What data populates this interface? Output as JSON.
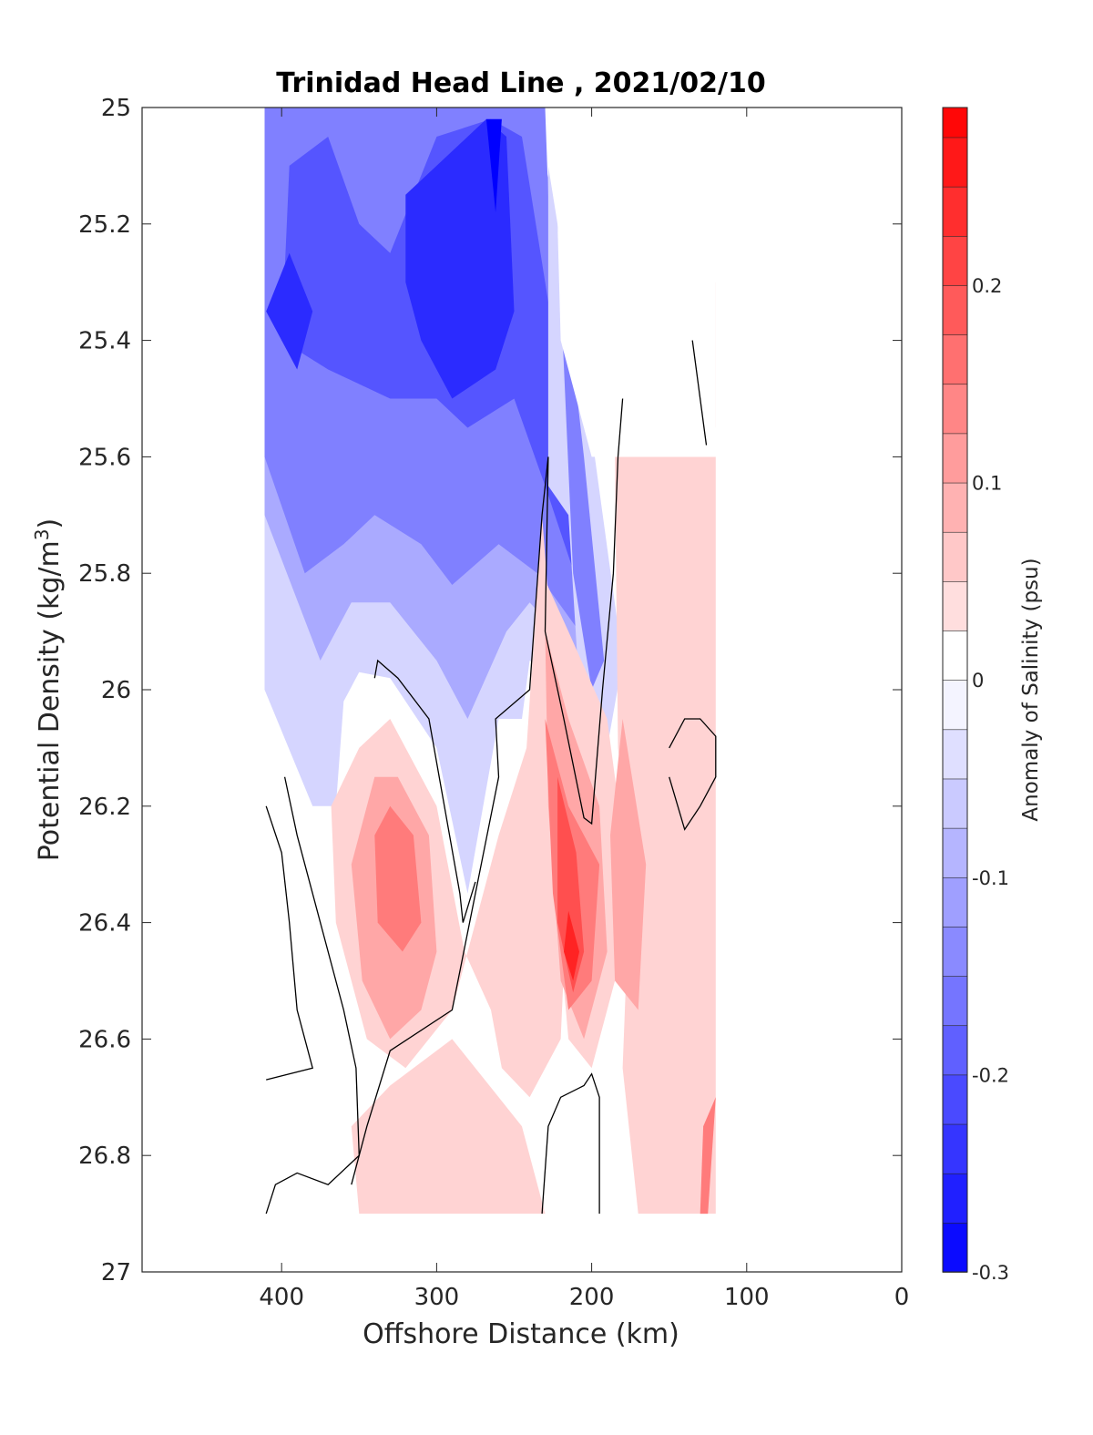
{
  "chart_data": {
    "type": "contour",
    "title": "Trinidad Head Line , 2021/02/10",
    "xlabel": "Offshore Distance (km)",
    "ylabel_main": "Potential Density (kg/m",
    "ylabel_sup": "3",
    "ylabel_close": ")",
    "colorbar_label": "Anomaly of Salinity (psu)",
    "xlim": [
      490,
      0
    ],
    "x_reversed": true,
    "ylim": [
      25,
      27
    ],
    "y_reversed": true,
    "x_ticks": [
      "400",
      "300",
      "200",
      "100",
      "0"
    ],
    "x_tick_values": [
      400,
      300,
      200,
      100,
      0
    ],
    "y_ticks": [
      "25",
      "25.2",
      "25.4",
      "25.6",
      "25.8",
      "26",
      "26.2",
      "26.4",
      "26.6",
      "26.8",
      "27"
    ],
    "y_tick_values": [
      25,
      25.2,
      25.4,
      25.6,
      25.8,
      26,
      26.2,
      26.4,
      26.6,
      26.8,
      27
    ],
    "colorbar_ticks": [
      "0.2",
      "0.1",
      "0",
      "-0.1",
      "-0.2",
      "-0.3"
    ],
    "colorbar_tick_values": [
      0.2,
      0.1,
      0,
      -0.1,
      -0.2,
      -0.3
    ],
    "colorbar_range": [
      -0.3,
      0.29
    ],
    "colorbar_step": 0.025,
    "colormap": {
      "negative": "#0000ff",
      "zero": "#ffffff",
      "positive": "#ff0000"
    },
    "regions": [
      {
        "name": "negative-upper-offshore",
        "level": -0.05,
        "points": [
          [
            411,
            25
          ],
          [
            230,
            25
          ],
          [
            230,
            25.1
          ],
          [
            220,
            25.2
          ],
          [
            220,
            25.4
          ],
          [
            205,
            25.6
          ],
          [
            205,
            26.1
          ],
          [
            212,
            26.0
          ],
          [
            240,
            25.95
          ],
          [
            245,
            26.05
          ],
          [
            260,
            26.05
          ],
          [
            280,
            26.35
          ],
          [
            300,
            26.1
          ],
          [
            330,
            25.98
          ],
          [
            350,
            25.97
          ],
          [
            360,
            26.02
          ],
          [
            365,
            26.2
          ],
          [
            380,
            26.2
          ],
          [
            411,
            26.0
          ]
        ]
      },
      {
        "name": "negative-upper-offshore",
        "level": -0.1,
        "points": [
          [
            411,
            25
          ],
          [
            230,
            25
          ],
          [
            230,
            25.1
          ],
          [
            220,
            25.2
          ],
          [
            218,
            25.45
          ],
          [
            205,
            25.6
          ],
          [
            205,
            25.95
          ],
          [
            240,
            25.85
          ],
          [
            255,
            25.9
          ],
          [
            280,
            26.05
          ],
          [
            300,
            25.95
          ],
          [
            330,
            25.85
          ],
          [
            355,
            25.85
          ],
          [
            375,
            25.95
          ],
          [
            411,
            25.7
          ]
        ]
      },
      {
        "name": "negative-upper-offshore",
        "level": -0.15,
        "points": [
          [
            411,
            25
          ],
          [
            230,
            25
          ],
          [
            228,
            25.15
          ],
          [
            222,
            25.4
          ],
          [
            208,
            25.6
          ],
          [
            208,
            25.9
          ],
          [
            235,
            25.8
          ],
          [
            260,
            25.75
          ],
          [
            290,
            25.82
          ],
          [
            310,
            25.75
          ],
          [
            340,
            25.7
          ],
          [
            360,
            25.75
          ],
          [
            385,
            25.8
          ],
          [
            411,
            25.6
          ]
        ]
      },
      {
        "name": "negative-upper-offshore",
        "level": -0.2,
        "points": [
          [
            395,
            25.1
          ],
          [
            370,
            25.05
          ],
          [
            350,
            25.2
          ],
          [
            330,
            25.25
          ],
          [
            300,
            25.05
          ],
          [
            265,
            25.02
          ],
          [
            245,
            25.05
          ],
          [
            230,
            25.3
          ],
          [
            212,
            25.6
          ],
          [
            205,
            25.85
          ],
          [
            230,
            25.65
          ],
          [
            250,
            25.5
          ],
          [
            280,
            25.55
          ],
          [
            300,
            25.5
          ],
          [
            330,
            25.5
          ],
          [
            370,
            25.45
          ],
          [
            400,
            25.4
          ]
        ]
      },
      {
        "name": "negative-upper-offshore",
        "level": -0.25,
        "points": [
          [
            395,
            25.25
          ],
          [
            380,
            25.35
          ],
          [
            390,
            25.45
          ],
          [
            410,
            25.35
          ]
        ]
      },
      {
        "name": "negative-upper-offshore",
        "level": -0.25,
        "points": [
          [
            320,
            25.15
          ],
          [
            300,
            25.1
          ],
          [
            268,
            25.02
          ],
          [
            255,
            25.05
          ],
          [
            250,
            25.35
          ],
          [
            262,
            25.45
          ],
          [
            290,
            25.5
          ],
          [
            310,
            25.4
          ],
          [
            320,
            25.3
          ]
        ]
      },
      {
        "name": "negative-upper-offshore",
        "level": -0.3,
        "points": [
          [
            268,
            25.02
          ],
          [
            258,
            25.02
          ],
          [
            262,
            25.18
          ]
        ]
      },
      {
        "name": "negative-wedge",
        "level": -0.05,
        "points": [
          [
            228,
            25.0
          ],
          [
            198,
            25.6
          ],
          [
            180,
            25.95
          ],
          [
            190,
            26.1
          ],
          [
            200,
            26.15
          ],
          [
            208,
            26.0
          ],
          [
            215,
            25.7
          ],
          [
            228,
            25.65
          ]
        ]
      },
      {
        "name": "negative-wedge",
        "level": -0.15,
        "points": [
          [
            222,
            25.2
          ],
          [
            205,
            25.6
          ],
          [
            192,
            25.95
          ],
          [
            200,
            26.0
          ],
          [
            212,
            25.8
          ]
        ]
      },
      {
        "name": "positive-inshore-core",
        "level": 0.05,
        "points": [
          [
            350,
            26.1
          ],
          [
            330,
            26.05
          ],
          [
            300,
            26.2
          ],
          [
            282,
            26.45
          ],
          [
            265,
            26.55
          ],
          [
            258,
            26.65
          ],
          [
            240,
            26.7
          ],
          [
            220,
            26.6
          ],
          [
            215,
            26.3
          ],
          [
            222,
            26.05
          ],
          [
            232,
            25.7
          ],
          [
            242,
            26.1
          ],
          [
            260,
            26.25
          ],
          [
            290,
            26.55
          ],
          [
            320,
            26.65
          ],
          [
            345,
            26.6
          ],
          [
            365,
            26.4
          ],
          [
            368,
            26.2
          ]
        ]
      },
      {
        "name": "positive-inshore-core",
        "level": 0.1,
        "points": [
          [
            340,
            26.15
          ],
          [
            325,
            26.15
          ],
          [
            305,
            26.25
          ],
          [
            300,
            26.45
          ],
          [
            310,
            26.55
          ],
          [
            330,
            26.6
          ],
          [
            348,
            26.5
          ],
          [
            355,
            26.3
          ]
        ]
      },
      {
        "name": "positive-inshore-core",
        "level": 0.15,
        "points": [
          [
            330,
            26.2
          ],
          [
            315,
            26.25
          ],
          [
            310,
            26.4
          ],
          [
            322,
            26.45
          ],
          [
            338,
            26.4
          ],
          [
            340,
            26.25
          ]
        ]
      },
      {
        "name": "positive-inshore-core",
        "level": 0.05,
        "points": [
          [
            232,
            25.8
          ],
          [
            215,
            25.9
          ],
          [
            190,
            26.05
          ],
          [
            180,
            26.25
          ],
          [
            185,
            26.5
          ],
          [
            200,
            26.65
          ],
          [
            215,
            26.6
          ],
          [
            225,
            26.3
          ]
        ]
      },
      {
        "name": "positive-inshore-core",
        "level": 0.1,
        "points": [
          [
            230,
            25.9
          ],
          [
            215,
            26.05
          ],
          [
            195,
            26.2
          ],
          [
            190,
            26.45
          ],
          [
            205,
            26.6
          ],
          [
            220,
            26.5
          ],
          [
            228,
            26.2
          ]
        ]
      },
      {
        "name": "positive-inshore-core",
        "level": 0.15,
        "points": [
          [
            230,
            26.05
          ],
          [
            215,
            26.2
          ],
          [
            195,
            26.3
          ],
          [
            200,
            26.5
          ],
          [
            215,
            26.55
          ],
          [
            225,
            26.35
          ]
        ]
      },
      {
        "name": "positive-inshore-core",
        "level": 0.2,
        "points": [
          [
            222,
            26.15
          ],
          [
            210,
            26.28
          ],
          [
            205,
            26.45
          ],
          [
            212,
            26.52
          ],
          [
            222,
            26.4
          ]
        ]
      },
      {
        "name": "positive-inshore-core",
        "level": 0.25,
        "points": [
          [
            215,
            26.38
          ],
          [
            208,
            26.45
          ],
          [
            212,
            26.5
          ],
          [
            218,
            26.45
          ]
        ]
      },
      {
        "name": "positive-near-shore",
        "level": 0.05,
        "points": [
          [
            185,
            25.6
          ],
          [
            160,
            25.6
          ],
          [
            150,
            25.6
          ],
          [
            120,
            25.6
          ],
          [
            120,
            26.9
          ],
          [
            170,
            26.9
          ],
          [
            180,
            26.65
          ],
          [
            175,
            26.3
          ],
          [
            183,
            26.1
          ]
        ]
      },
      {
        "name": "positive-near-shore",
        "level": 0.1,
        "points": [
          [
            180,
            26.05
          ],
          [
            165,
            26.3
          ],
          [
            170,
            26.55
          ],
          [
            185,
            26.5
          ],
          [
            188,
            26.25
          ]
        ]
      },
      {
        "name": "positive-near-shore",
        "level": 0.15,
        "points": [
          [
            120,
            26.7
          ],
          [
            125,
            26.9
          ],
          [
            130,
            26.9
          ],
          [
            128,
            26.75
          ]
        ]
      },
      {
        "name": "positive-deep",
        "level": 0.05,
        "points": [
          [
            350,
            26.9
          ],
          [
            300,
            26.9
          ],
          [
            230,
            26.9
          ],
          [
            245,
            26.75
          ],
          [
            260,
            26.7
          ],
          [
            290,
            26.6
          ],
          [
            330,
            26.68
          ],
          [
            355,
            26.75
          ]
        ]
      },
      {
        "name": "positive-shallow-patch",
        "level": 0.05,
        "points": [
          [
            128,
            25.35
          ],
          [
            120,
            25.3
          ],
          [
            120,
            25.55
          ],
          [
            128,
            25.5
          ]
        ]
      }
    ],
    "zero_contours": [
      [
        [
          410,
          26.2
        ],
        [
          400,
          26.28
        ],
        [
          395,
          26.4
        ],
        [
          390,
          26.55
        ],
        [
          385,
          26.6
        ],
        [
          380,
          26.65
        ],
        [
          410,
          26.67
        ]
      ],
      [
        [
          410,
          26.9
        ],
        [
          404,
          26.85
        ],
        [
          390,
          26.83
        ],
        [
          370,
          26.85
        ],
        [
          350,
          26.8
        ],
        [
          352,
          26.65
        ],
        [
          360,
          26.55
        ],
        [
          375,
          26.4
        ],
        [
          390,
          26.25
        ],
        [
          398,
          26.15
        ]
      ],
      [
        [
          355,
          26.85
        ],
        [
          345,
          26.75
        ],
        [
          330,
          26.62
        ],
        [
          290,
          26.55
        ],
        [
          260,
          26.15
        ],
        [
          262,
          26.05
        ],
        [
          240,
          26.0
        ],
        [
          232,
          25.7
        ],
        [
          228,
          25.6
        ],
        [
          230,
          25.9
        ],
        [
          218,
          26.05
        ],
        [
          205,
          26.22
        ],
        [
          200,
          26.23
        ],
        [
          193,
          26.0
        ],
        [
          186,
          25.8
        ],
        [
          183,
          25.6
        ],
        [
          180,
          25.5
        ]
      ],
      [
        [
          340,
          25.98
        ],
        [
          338,
          25.95
        ],
        [
          325,
          25.98
        ],
        [
          305,
          26.05
        ],
        [
          285,
          26.35
        ],
        [
          283,
          26.4
        ],
        [
          275,
          26.33
        ]
      ],
      [
        [
          232,
          26.9
        ],
        [
          228,
          26.75
        ],
        [
          220,
          26.7
        ],
        [
          205,
          26.68
        ],
        [
          200,
          26.66
        ],
        [
          195,
          26.7
        ],
        [
          195,
          26.9
        ]
      ],
      [
        [
          135,
          25.4
        ],
        [
          130,
          25.5
        ],
        [
          126,
          25.58
        ]
      ],
      [
        [
          150,
          26.1
        ],
        [
          140,
          26.05
        ],
        [
          130,
          26.05
        ],
        [
          120,
          26.08
        ],
        [
          120,
          26.15
        ],
        [
          130,
          26.2
        ],
        [
          140,
          26.24
        ],
        [
          150,
          26.15
        ]
      ]
    ],
    "nodata_blocks": [
      [
        [
          228,
          25.0
        ],
        [
          120,
          25.0
        ],
        [
          120,
          25.6
        ],
        [
          150,
          25.6
        ],
        [
          160,
          25.6
        ],
        [
          200,
          25.6
        ],
        [
          220,
          25.4
        ],
        [
          222,
          25.2
        ],
        [
          228,
          25.1
        ]
      ]
    ],
    "data_extent": {
      "x": [
        411,
        120
      ],
      "y": [
        25,
        26.9
      ]
    }
  }
}
